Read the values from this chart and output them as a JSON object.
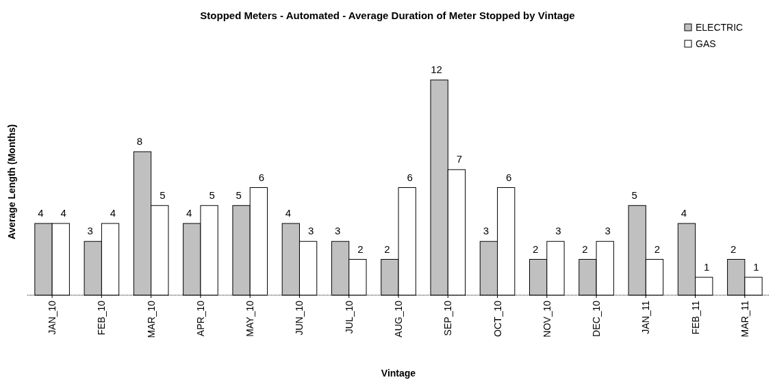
{
  "chart_data": {
    "type": "bar",
    "title": "Stopped Meters - Automated - Average Duration of Meter Stopped by Vintage",
    "xlabel": "Vintage",
    "ylabel": "Average Length (Months)",
    "categories": [
      "JAN_10",
      "FEB_10",
      "MAR_10",
      "APR_10",
      "MAY_10",
      "JUN_10",
      "JUL_10",
      "AUG_10",
      "SEP_10",
      "OCT_10",
      "NOV_10",
      "DEC_10",
      "JAN_11",
      "FEB_11",
      "MAR_11"
    ],
    "series": [
      {
        "name": "ELECTRIC",
        "color": "#c0c0c0",
        "values": [
          4,
          3,
          8,
          4,
          5,
          4,
          3,
          2,
          12,
          3,
          2,
          2,
          5,
          4,
          2
        ]
      },
      {
        "name": "GAS",
        "color": "#ffffff",
        "values": [
          4,
          4,
          5,
          5,
          6,
          3,
          2,
          6,
          7,
          6,
          3,
          3,
          2,
          1,
          1
        ]
      }
    ],
    "data_labels": true,
    "legend": "top right"
  }
}
